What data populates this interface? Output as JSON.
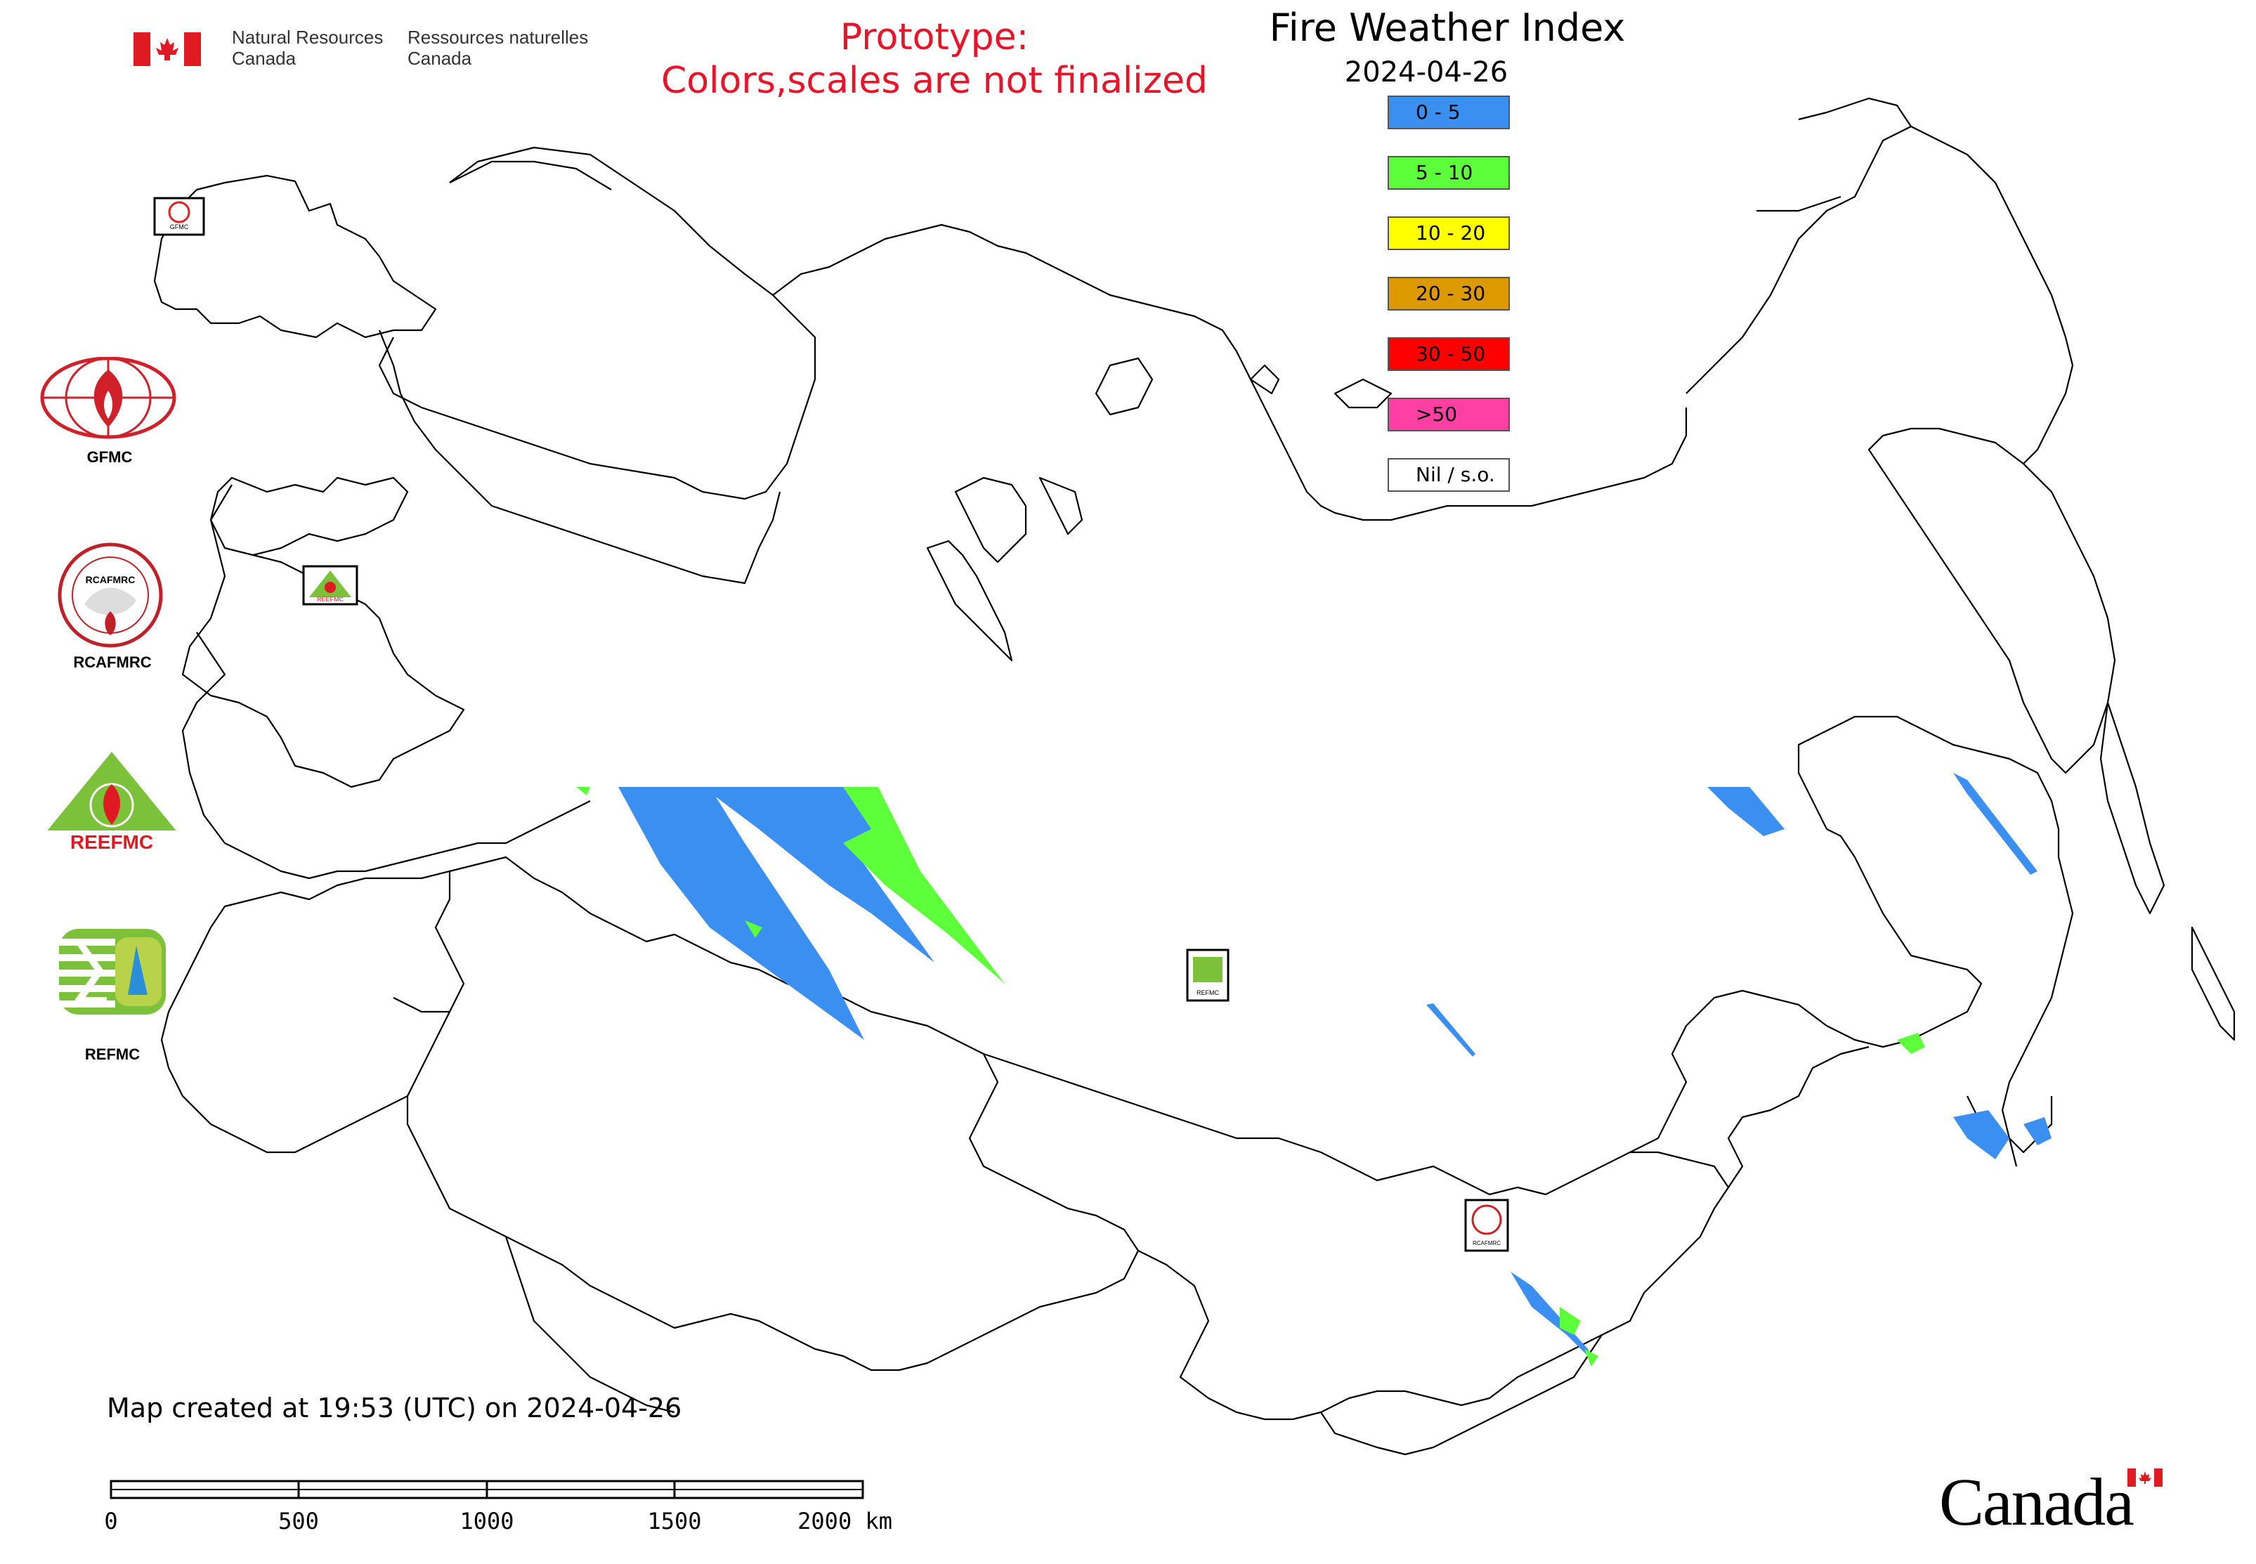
{
  "header": {
    "gov_en": [
      "Natural Resources",
      "Canada"
    ],
    "gov_fr": [
      "Ressources naturelles",
      "Canada"
    ],
    "prototype_line1": "Prototype:",
    "prototype_line2": "Colors,scales are not finalized",
    "title": "Fire Weather Index",
    "date": "2024-04-26"
  },
  "legend": [
    {
      "label": "0 - 5",
      "color": "#3b8ff0"
    },
    {
      "label": "5 - 10",
      "color": "#5cff3a"
    },
    {
      "label": "10 - 20",
      "color": "#ffff00"
    },
    {
      "label": "20 - 30",
      "color": "#dd9a00"
    },
    {
      "label": "30 - 50",
      "color": "#ff0000"
    },
    {
      "label": ">50",
      "color": "#ff3fa4"
    },
    {
      "label": "Nil / s.o.",
      "color": "#ffffff"
    }
  ],
  "logos": [
    {
      "name": "GFMC",
      "icon": "gfmc-logo-icon"
    },
    {
      "name": "RCAFMRC",
      "icon": "rcafmrc-logo-icon"
    },
    {
      "name": "REEFMC",
      "icon": "reefmc-logo-icon"
    },
    {
      "name": "REFMC",
      "icon": "refmc-logo-icon"
    }
  ],
  "logo_texts": {
    "gfmc_badge": "GFMC",
    "reefmc_badge": "REEFMC",
    "refmc_badge": "REFMC",
    "rcafmrc_badge": "RCAFMRC"
  },
  "footer": {
    "map_created": "Map created at 19:53 (UTC) on 2024-04-26",
    "scale_labels": [
      "0",
      "500",
      "1000",
      "1500",
      "2000 km"
    ],
    "wordmark": "Canada"
  },
  "colors": {
    "prototype_text": "#e8142a",
    "boundary": "#000000"
  }
}
